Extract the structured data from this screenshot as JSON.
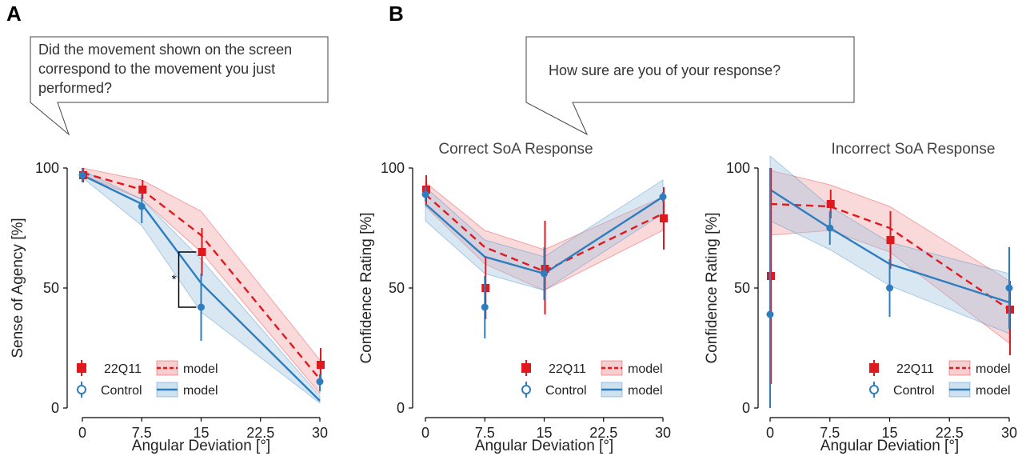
{
  "panels": {
    "a": {
      "letter": "A",
      "question_lines": [
        "Did the movement shown on the screen",
        "correspond to the movement you just",
        "performed?"
      ]
    },
    "b": {
      "letter": "B",
      "question": "How sure are you of your response?"
    }
  },
  "colors": {
    "patient": "#e0191f",
    "control": "#2e7dbf",
    "patient_band": "#f2a0a3",
    "control_band": "#9ec4df"
  },
  "legend": {
    "patient": "22Q11",
    "control": "Control",
    "model": "model"
  },
  "chart_data": [
    {
      "id": "soa",
      "type": "line",
      "title": "",
      "xlabel": "Angular Deviation [°]",
      "ylabel": "Sense of Agency [%]",
      "x_ticks": [
        0,
        7.5,
        15,
        22.5,
        30
      ],
      "x_tick_labels": [
        "0",
        "7.5",
        "15",
        "22.5",
        "30"
      ],
      "y_ticks": [
        0,
        50,
        100
      ],
      "y_tick_labels": [
        "0",
        "50",
        "100"
      ],
      "xlim": [
        -1.2,
        30.5
      ],
      "ylim": [
        0,
        100
      ],
      "significance": {
        "x": 15,
        "y_low": 42,
        "y_high": 65,
        "label": "*"
      },
      "series": [
        {
          "name": "22Q11",
          "kind": "points",
          "group": "patient",
          "x": [
            0,
            7.5,
            15,
            30
          ],
          "y": [
            97,
            91,
            65,
            18
          ],
          "err_low": [
            94,
            87,
            55,
            10
          ],
          "err_high": [
            100,
            95,
            75,
            25
          ]
        },
        {
          "name": "Control",
          "kind": "points",
          "group": "control",
          "x": [
            0,
            7.5,
            15,
            30
          ],
          "y": [
            97,
            84,
            42,
            11
          ],
          "err_low": [
            94,
            77,
            28,
            7
          ],
          "err_high": [
            100,
            89,
            56,
            14
          ]
        },
        {
          "name": "model",
          "kind": "model",
          "group": "patient",
          "x": [
            0,
            7.5,
            15,
            30
          ],
          "y": [
            98,
            91,
            72,
            12
          ],
          "band_low": [
            97,
            87,
            65,
            6
          ],
          "band_high": [
            100,
            95,
            82,
            20
          ]
        },
        {
          "name": "model",
          "kind": "model",
          "group": "control",
          "x": [
            0,
            7.5,
            15,
            30
          ],
          "y": [
            97,
            85,
            52,
            3
          ],
          "band_low": [
            96,
            76,
            40,
            2
          ],
          "band_high": [
            99,
            87,
            62,
            5
          ]
        }
      ]
    },
    {
      "id": "conf_correct",
      "type": "line",
      "title": "Correct SoA Response",
      "xlabel": "Angular Deviation [°]",
      "ylabel": "Confidence Rating [%]",
      "x_ticks": [
        0,
        7.5,
        15,
        22.5,
        30
      ],
      "x_tick_labels": [
        "0",
        "7.5",
        "15",
        "22.5",
        "30"
      ],
      "y_ticks": [
        0,
        50,
        100
      ],
      "y_tick_labels": [
        "0",
        "50",
        "100"
      ],
      "xlim": [
        -1.2,
        30.5
      ],
      "ylim": [
        0,
        100
      ],
      "series": [
        {
          "name": "22Q11",
          "kind": "points",
          "group": "patient",
          "x": [
            0,
            7.5,
            15,
            30
          ],
          "y": [
            91,
            50,
            58,
            79
          ],
          "err_low": [
            85,
            37,
            39,
            66
          ],
          "err_high": [
            97,
            63,
            78,
            92
          ]
        },
        {
          "name": "Control",
          "kind": "points",
          "group": "control",
          "x": [
            0,
            7.5,
            15,
            30
          ],
          "y": [
            89,
            42,
            56,
            88
          ],
          "err_low": [
            86,
            29,
            45,
            86
          ],
          "err_high": [
            92,
            55,
            67,
            90
          ]
        },
        {
          "name": "model",
          "kind": "model",
          "group": "patient",
          "x": [
            0,
            7.5,
            15,
            30
          ],
          "y": [
            89,
            67,
            57,
            81
          ],
          "band_low": [
            84,
            60,
            49,
            74
          ],
          "band_high": [
            94,
            74,
            66,
            88
          ]
        },
        {
          "name": "model",
          "kind": "model",
          "group": "control",
          "x": [
            0,
            7.5,
            15,
            30
          ],
          "y": [
            85,
            63,
            56,
            88
          ],
          "band_low": [
            78,
            56,
            49,
            81
          ],
          "band_high": [
            92,
            70,
            63,
            95
          ]
        }
      ]
    },
    {
      "id": "conf_incorrect",
      "type": "line",
      "title": "Incorrect SoA Response",
      "xlabel": "Angular Deviation [°]",
      "ylabel": "Confidence Rating [%]",
      "x_ticks": [
        0,
        7.5,
        15,
        22.5,
        30
      ],
      "x_tick_labels": [
        "0",
        "7.5",
        "15",
        "22.5",
        "30"
      ],
      "y_ticks": [
        0,
        50,
        100
      ],
      "y_tick_labels": [
        "0",
        "50",
        "100"
      ],
      "xlim": [
        -0.5,
        30.5
      ],
      "ylim": [
        0,
        100
      ],
      "series": [
        {
          "name": "22Q11",
          "kind": "points",
          "group": "patient",
          "x": [
            0,
            7.5,
            15,
            30
          ],
          "y": [
            55,
            85,
            70,
            41
          ],
          "err_low": [
            10,
            79,
            58,
            22
          ],
          "err_high": [
            100,
            91,
            82,
            53
          ]
        },
        {
          "name": "Control",
          "kind": "points",
          "group": "control",
          "x": [
            0,
            7.5,
            15,
            30
          ],
          "y": [
            39,
            75,
            50,
            50
          ],
          "err_low": [
            0,
            68,
            38,
            33
          ],
          "err_high": [
            100,
            82,
            62,
            67
          ]
        },
        {
          "name": "model",
          "kind": "model",
          "group": "patient",
          "x": [
            0,
            7.5,
            15,
            30
          ],
          "y": [
            85,
            84,
            75,
            41
          ],
          "band_low": [
            72,
            74,
            65,
            27
          ],
          "band_high": [
            99,
            93,
            84,
            53
          ]
        },
        {
          "name": "model",
          "kind": "model",
          "group": "control",
          "x": [
            0,
            7.5,
            15,
            30
          ],
          "y": [
            91,
            75,
            60,
            44
          ],
          "band_low": [
            78,
            66,
            51,
            31
          ],
          "band_high": [
            105,
            84,
            69,
            56
          ]
        }
      ]
    }
  ]
}
